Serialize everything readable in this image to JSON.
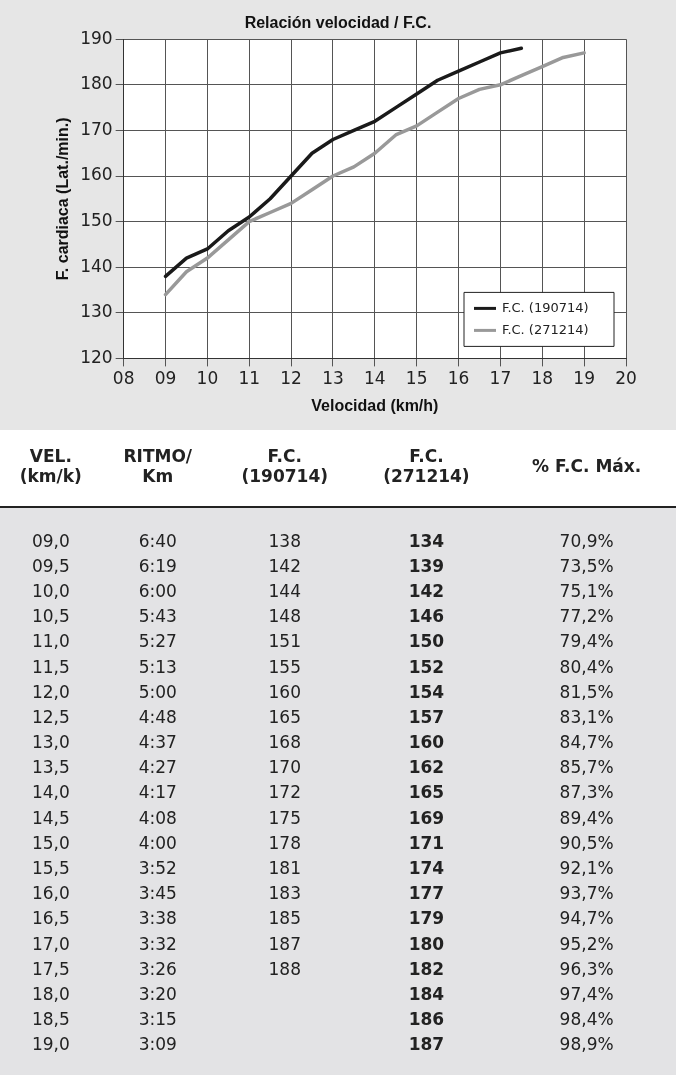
{
  "chart_data": [
    {
      "type": "line",
      "title": "Relación velocidad / F.C.",
      "xlabel": "Velocidad (km/h)",
      "ylabel": "F. cardiaca (Lat./min.)",
      "series": [
        {
          "name": "F.C. (190714)",
          "color": "#1a1a1a",
          "x": [
            9,
            9.5,
            10,
            10.5,
            11,
            11.5,
            12,
            12.5,
            13,
            13.5,
            14,
            14.5,
            15,
            15.5,
            16,
            16.5,
            17,
            17.5
          ],
          "values": [
            138,
            142,
            144,
            148,
            151,
            155,
            160,
            165,
            168,
            170,
            172,
            175,
            178,
            181,
            183,
            185,
            187,
            188
          ]
        },
        {
          "name": "F.C. (271214)",
          "color": "#999999",
          "x": [
            9,
            9.5,
            10,
            10.5,
            11,
            11.5,
            12,
            12.5,
            13,
            13.5,
            14,
            14.5,
            15,
            15.5,
            16,
            16.5,
            17,
            17.5,
            18,
            18.5,
            19
          ],
          "values": [
            134,
            139,
            142,
            146,
            150,
            152,
            154,
            157,
            160,
            162,
            165,
            169,
            171,
            174,
            177,
            179,
            180,
            182,
            184,
            186,
            187
          ]
        }
      ],
      "xlim": [
        8,
        20
      ],
      "xticks": [
        {
          "value": 8,
          "label": "08"
        },
        {
          "value": 9,
          "label": "09"
        },
        10,
        11,
        12,
        13,
        14,
        15,
        16,
        17,
        18,
        19,
        20
      ],
      "ylim": [
        120,
        190
      ],
      "yticks": [
        120,
        130,
        140,
        150,
        160,
        170,
        180,
        190
      ],
      "grid": true,
      "legend": "bottom right",
      "marker": "none",
      "line_style": "solid"
    },
    {
      "type": "other",
      "annotations": [
        "VEL.\n(km/k)\tRITMO/\nKm\tF.C.\n(190714)\tF.C.\n(271214)\t% F.C. Máx.",
        "09,0\t6:40\t138\t134\t70,9%",
        "09,5\t6:19\t142\t139\t73,5%",
        "10,0\t6:00\t144\t142\t75,1%",
        "10,5\t5:43\t148\t146\t77,2%",
        "11,0\t5:27\t151\t150\t79,4%",
        "11,5\t5:13\t155\t152\t80,4%",
        "12,0\t5:00\t160\t154\t81,5%",
        "12,5\t4:48\t165\t157\t83,1%",
        "13,0\t4:37\t168\t160\t84,7%",
        "13,5\t4:27\t170\t162\t85,7%",
        "14,0\t4:17\t172\t165\t87,3%",
        "14,5\t4:08\t175\t169\t89,4%",
        "15,0\t4:00\t178\t171\t90,5%",
        "15,5\t3:52\t181\t174\t92,1%",
        "16,0\t3:45\t183\t177\t93,7%",
        "16,5\t3:38\t185\t179\t94,7%",
        "17,0\t3:32\t187\t180\t95,2%",
        "17,5\t3:26\t188\t182\t96,3%",
        "18,0\t3:20\t\t184\t97,4%",
        "18,5\t3:15\t\t186\t98,4%",
        "19,0\t3:09\t\t187\t98,9%"
      ]
    }
  ]
}
